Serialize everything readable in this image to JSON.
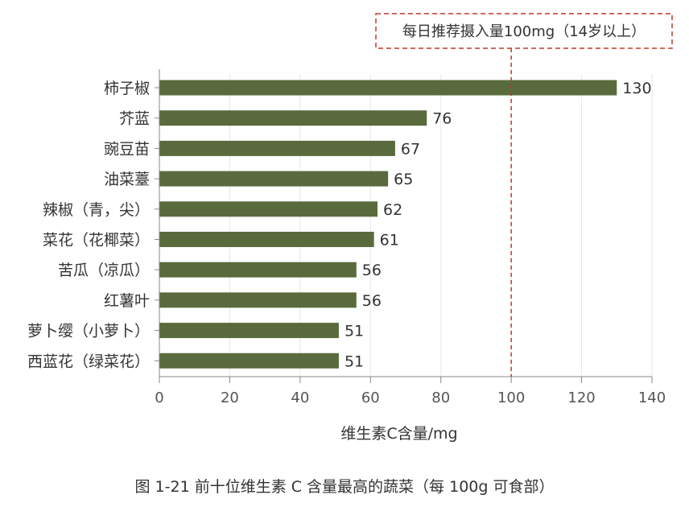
{
  "chart_data": {
    "type": "bar",
    "orientation": "horizontal",
    "categories": [
      "柿子椒",
      "芥蓝",
      "豌豆苗",
      "油菜薹",
      "辣椒（青，尖）",
      "菜花（花椰菜）",
      "苦瓜（凉瓜）",
      "红薯叶",
      "萝卜缨（小萝卜）",
      "西蓝花（绿菜花）"
    ],
    "values": [
      130,
      76,
      67,
      65,
      62,
      61,
      56,
      56,
      51,
      51
    ],
    "value_labels": [
      "130",
      "76",
      "67",
      "65",
      "62",
      "61",
      "56",
      "56",
      "51",
      "51"
    ],
    "xlabel": "维生素C含量/mg",
    "xlim": [
      0,
      140
    ],
    "xticks": [
      0,
      20,
      40,
      60,
      80,
      100,
      120,
      140
    ],
    "xtick_labels": [
      "0",
      "20",
      "40",
      "60",
      "80",
      "100",
      "120",
      "140"
    ],
    "reference_line": {
      "value": 100,
      "label": "每日推荐摄入量100mg（14岁以上）"
    },
    "bar_color": "#596b3c",
    "reference_color": "#c0392b",
    "grid": true
  },
  "caption": "图 1-21    前十位维生素 C 含量最高的蔬菜（每 100g 可食部）"
}
